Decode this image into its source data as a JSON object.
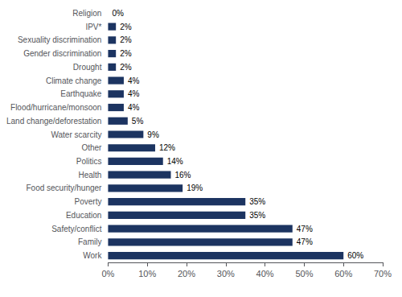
{
  "chart_data": {
    "type": "bar",
    "orientation": "horizontal",
    "categories": [
      "Work",
      "Family",
      "Safety/conflict",
      "Education",
      "Poverty",
      "Food security/hunger",
      "Health",
      "Politics",
      "Other",
      "Water scarcity",
      "Land change/deforestation",
      "Flood/hurricane/monsoon",
      "Earthquake",
      "Climate change",
      "Drought",
      "Gender discrimination",
      "Sexuality discrimination",
      "IPV*",
      "Religion"
    ],
    "values": [
      60,
      47,
      47,
      35,
      35,
      19,
      16,
      14,
      12,
      9,
      5,
      4,
      4,
      4,
      2,
      2,
      2,
      2,
      0
    ],
    "value_labels": [
      "60%",
      "47%",
      "47%",
      "35%",
      "35%",
      "19%",
      "16%",
      "14%",
      "12%",
      "9%",
      "5%",
      "4%",
      "4%",
      "4%",
      "2%",
      "2%",
      "2%",
      "2%",
      "0%"
    ],
    "data_labels": true,
    "color": "#1c3461",
    "xlim": [
      0,
      70
    ],
    "xticks": [
      {
        "value": 0,
        "label": "0%"
      },
      {
        "value": 10,
        "label": "10%"
      },
      {
        "value": 20,
        "label": "20%"
      },
      {
        "value": 30,
        "label": "30%"
      },
      {
        "value": 40,
        "label": "40%"
      },
      {
        "value": 50,
        "label": "50%"
      },
      {
        "value": 60,
        "label": "60%"
      },
      {
        "value": 70,
        "label": "70%"
      }
    ],
    "grid": false
  }
}
